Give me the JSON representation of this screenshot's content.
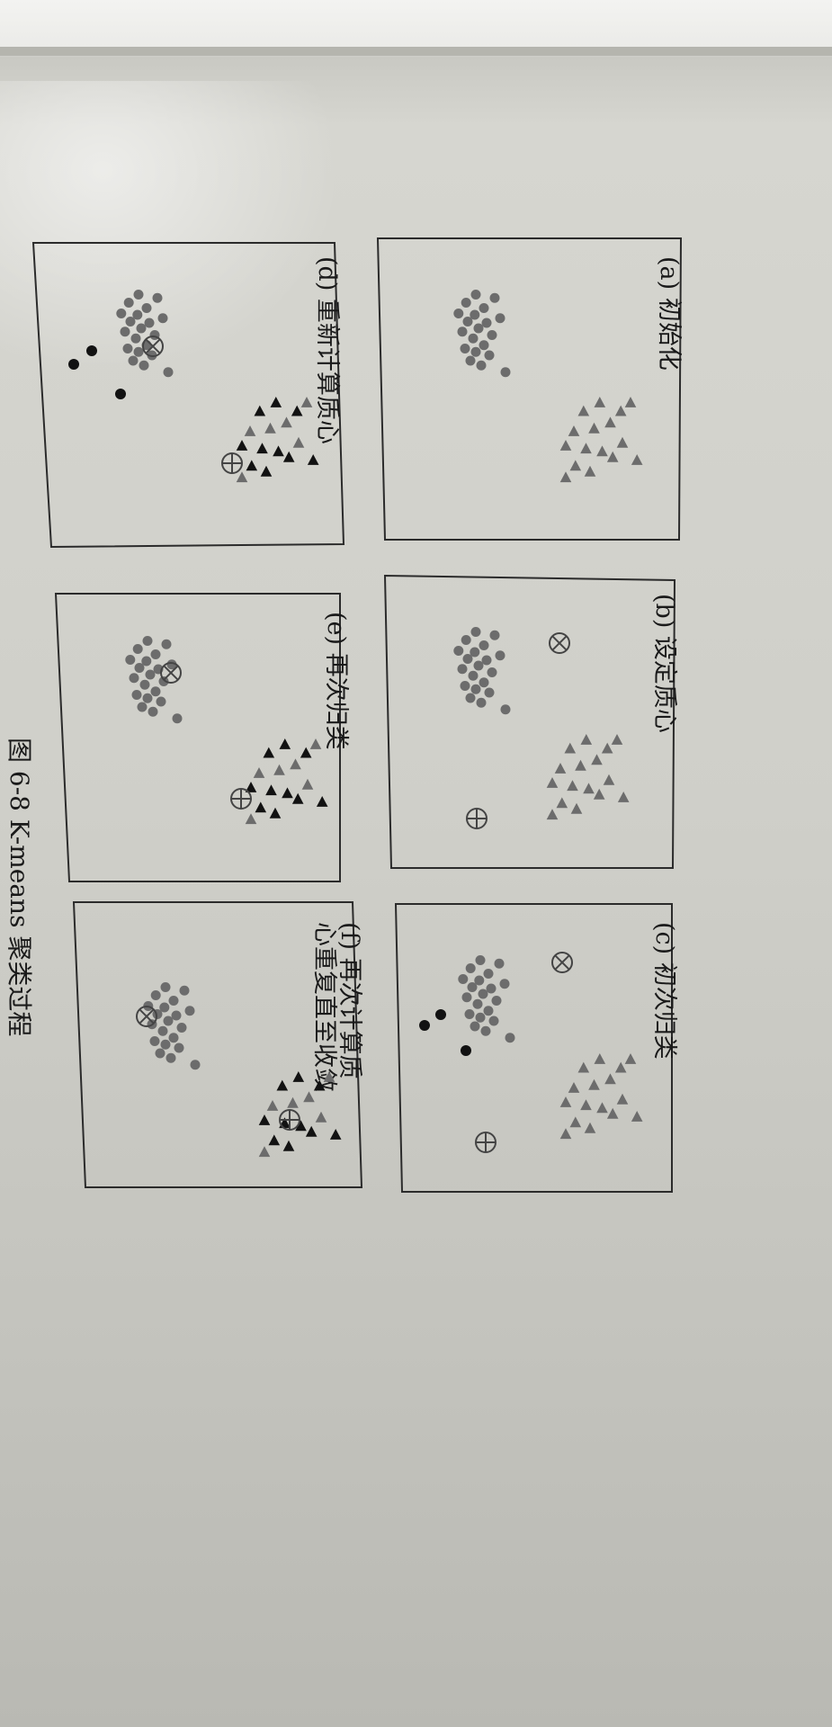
{
  "caption": "图 6-8   K-means 聚类过程",
  "panels": [
    {
      "id": "a",
      "label": "(a) 初始化",
      "label2": ""
    },
    {
      "id": "b",
      "label": "(b) 设定质心",
      "label2": ""
    },
    {
      "id": "c",
      "label": "(c) 初次归类",
      "label2": ""
    },
    {
      "id": "d",
      "label": "(d) 重新计算质心",
      "label2": ""
    },
    {
      "id": "e",
      "label": "(e) 再次归类",
      "label2": ""
    },
    {
      "id": "f",
      "label": "(f) 再次计算质",
      "label2": "心重复直至收敛"
    }
  ],
  "legend": {
    "gray_point": "cluster-1-point",
    "black_point": "reassigned-point",
    "centroid_1_icon": "circle-x-icon",
    "centroid_2_icon": "circle-plus-icon"
  }
}
